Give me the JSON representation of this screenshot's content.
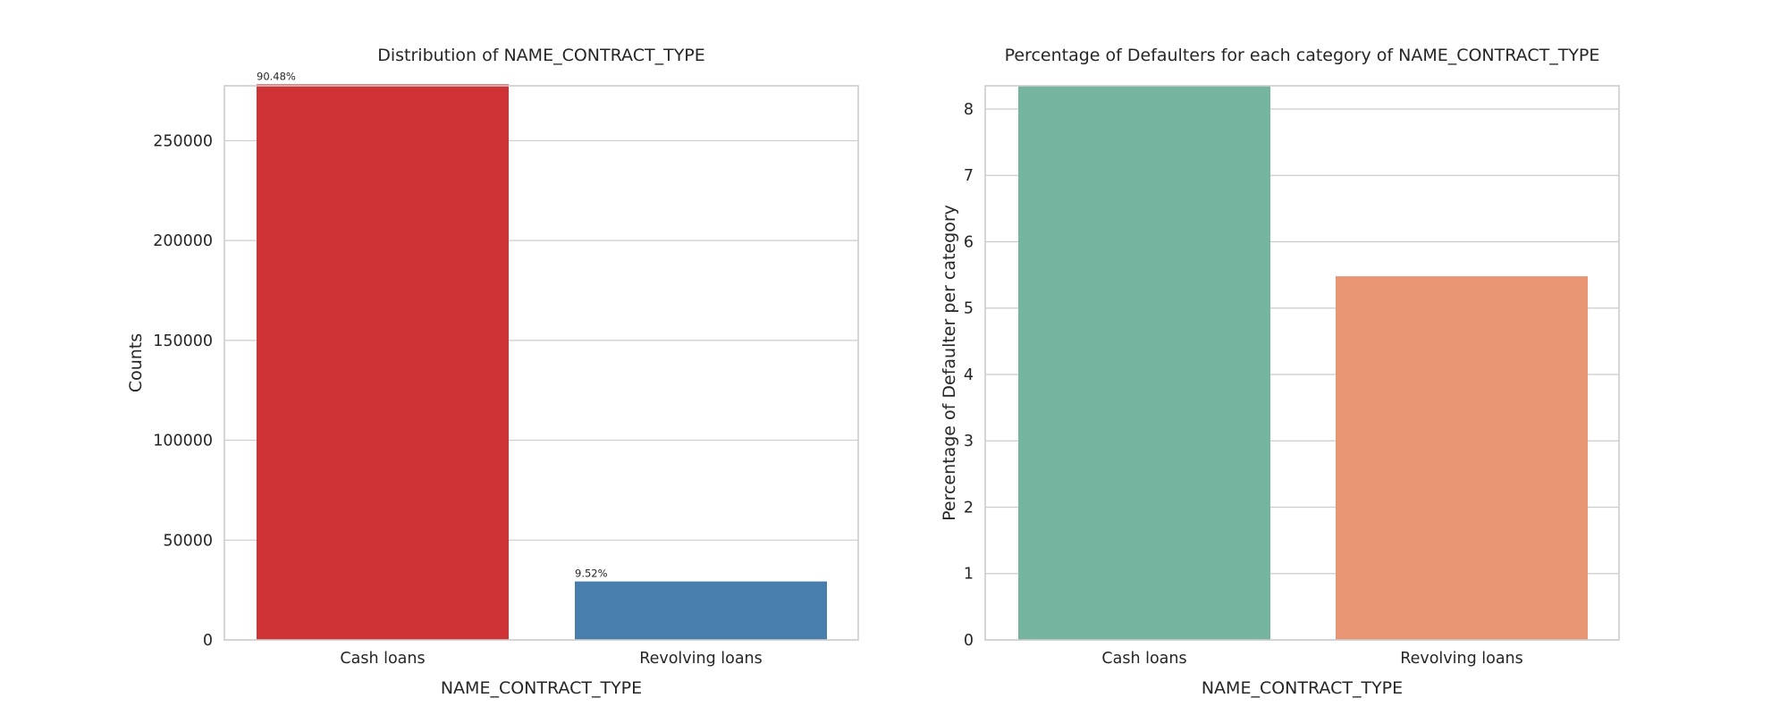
{
  "chart_data": [
    {
      "type": "bar",
      "title": "Distribution of NAME_CONTRACT_TYPE",
      "xlabel": "NAME_CONTRACT_TYPE",
      "ylabel": "Counts",
      "categories": [
        "Cash loans",
        "Revolving loans"
      ],
      "values": [
        278232,
        29279
      ],
      "data_labels": [
        "90.48%",
        "9.52%"
      ],
      "colors": [
        "#cf3335",
        "#477eab"
      ],
      "ylim": [
        0,
        277500
      ],
      "yticks": [
        0,
        50000,
        100000,
        150000,
        200000,
        250000
      ],
      "grid": "horizontal"
    },
    {
      "type": "bar",
      "title": "Percentage of Defaulters for each category of NAME_CONTRACT_TYPE",
      "xlabel": "NAME_CONTRACT_TYPE",
      "ylabel": "Percentage of Defaulter per category",
      "categories": [
        "Cash loans",
        "Revolving loans"
      ],
      "values": [
        8.35,
        5.48
      ],
      "colors": [
        "#75b5a0",
        "#e89574"
      ],
      "ylim": [
        0,
        8.35
      ],
      "yticks": [
        0,
        1,
        2,
        3,
        4,
        5,
        6,
        7,
        8
      ],
      "grid": "horizontal"
    }
  ]
}
